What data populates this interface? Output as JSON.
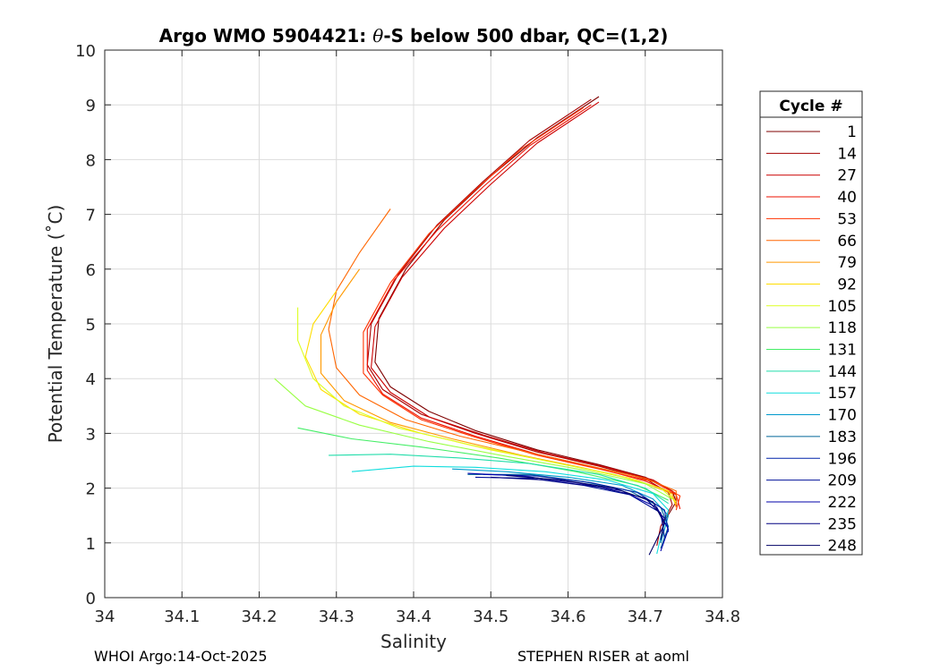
{
  "chart_data": {
    "type": "line",
    "title": "Argo WMO 5904421: θ-S below 500 dbar,  QC=(1,2)",
    "title_prefix": "Argo WMO 5904421: ",
    "title_theta": "θ",
    "title_suffix": "-S below 500 dbar,  QC=(1,2)",
    "xlabel": "Salinity",
    "ylabel": "Potential Temperature (˚C)",
    "xlim": [
      34.0,
      34.8
    ],
    "ylim": [
      0,
      10
    ],
    "xticks": [
      34.0,
      34.1,
      34.2,
      34.3,
      34.4,
      34.5,
      34.6,
      34.7,
      34.8
    ],
    "xtick_labels": [
      "34",
      "34.1",
      "34.2",
      "34.3",
      "34.4",
      "34.5",
      "34.6",
      "34.7",
      "34.8"
    ],
    "yticks": [
      0,
      1,
      2,
      3,
      4,
      5,
      6,
      7,
      8,
      9,
      10
    ],
    "ytick_labels": [
      "0",
      "1",
      "2",
      "3",
      "4",
      "5",
      "6",
      "7",
      "8",
      "9",
      "10"
    ],
    "grid": true,
    "legend_title": "Cycle #",
    "legend_position": "right",
    "series": [
      {
        "name": "1",
        "color": "#7f0000",
        "points": [
          [
            34.64,
            9.15
          ],
          [
            34.56,
            8.4
          ],
          [
            34.5,
            7.7
          ],
          [
            34.44,
            6.9
          ],
          [
            34.39,
            6.0
          ],
          [
            34.355,
            5.1
          ],
          [
            34.35,
            4.3
          ],
          [
            34.37,
            3.85
          ],
          [
            34.42,
            3.4
          ],
          [
            34.48,
            3.05
          ],
          [
            34.56,
            2.7
          ],
          [
            34.64,
            2.43
          ],
          [
            34.7,
            2.2
          ],
          [
            34.735,
            1.95
          ],
          [
            34.74,
            1.75
          ],
          [
            34.725,
            1.4
          ],
          [
            34.72,
            1.0
          ]
        ]
      },
      {
        "name": "14",
        "color": "#a40000",
        "points": [
          [
            34.63,
            9.1
          ],
          [
            34.55,
            8.35
          ],
          [
            34.49,
            7.6
          ],
          [
            34.43,
            6.8
          ],
          [
            34.38,
            5.9
          ],
          [
            34.345,
            5.0
          ],
          [
            34.34,
            4.25
          ],
          [
            34.36,
            3.8
          ],
          [
            34.41,
            3.35
          ],
          [
            34.48,
            3.0
          ],
          [
            34.56,
            2.66
          ],
          [
            34.64,
            2.4
          ],
          [
            34.7,
            2.17
          ],
          [
            34.73,
            1.92
          ],
          [
            34.735,
            1.7
          ],
          [
            34.72,
            1.3
          ],
          [
            34.715,
            0.95
          ]
        ]
      },
      {
        "name": "27",
        "color": "#cc0000",
        "points": [
          [
            34.64,
            9.05
          ],
          [
            34.56,
            8.3
          ],
          [
            34.5,
            7.55
          ],
          [
            34.44,
            6.75
          ],
          [
            34.385,
            5.85
          ],
          [
            34.35,
            4.95
          ],
          [
            34.345,
            4.2
          ],
          [
            34.37,
            3.75
          ],
          [
            34.42,
            3.3
          ],
          [
            34.49,
            2.97
          ],
          [
            34.57,
            2.64
          ],
          [
            34.65,
            2.38
          ],
          [
            34.71,
            2.15
          ],
          [
            34.74,
            1.9
          ],
          [
            34.74,
            1.65
          ]
        ]
      },
      {
        "name": "40",
        "color": "#ee1100",
        "points": [
          [
            34.63,
            9.0
          ],
          [
            34.55,
            8.25
          ],
          [
            34.49,
            7.5
          ],
          [
            34.43,
            6.7
          ],
          [
            34.375,
            5.8
          ],
          [
            34.34,
            4.9
          ],
          [
            34.34,
            4.15
          ],
          [
            34.36,
            3.72
          ],
          [
            34.41,
            3.28
          ],
          [
            34.48,
            2.95
          ],
          [
            34.56,
            2.62
          ],
          [
            34.64,
            2.36
          ],
          [
            34.7,
            2.13
          ],
          [
            34.74,
            1.88
          ],
          [
            34.745,
            1.62
          ]
        ]
      },
      {
        "name": "53",
        "color": "#ff3300",
        "points": [
          [
            34.62,
            8.95
          ],
          [
            34.54,
            8.2
          ],
          [
            34.48,
            7.45
          ],
          [
            34.42,
            6.65
          ],
          [
            34.37,
            5.75
          ],
          [
            34.335,
            4.85
          ],
          [
            34.335,
            4.1
          ],
          [
            34.36,
            3.7
          ],
          [
            34.41,
            3.25
          ],
          [
            34.48,
            2.93
          ],
          [
            34.56,
            2.6
          ],
          [
            34.64,
            2.35
          ],
          [
            34.71,
            2.12
          ],
          [
            34.745,
            1.86
          ],
          [
            34.74,
            1.6
          ]
        ]
      },
      {
        "name": "66",
        "color": "#ff6600",
        "points": [
          [
            34.37,
            7.1
          ],
          [
            34.33,
            6.3
          ],
          [
            34.3,
            5.6
          ],
          [
            34.29,
            4.9
          ],
          [
            34.3,
            4.2
          ],
          [
            34.33,
            3.7
          ],
          [
            34.39,
            3.25
          ],
          [
            34.46,
            2.95
          ],
          [
            34.55,
            2.65
          ],
          [
            34.63,
            2.4
          ],
          [
            34.7,
            2.18
          ],
          [
            34.74,
            1.95
          ],
          [
            34.74,
            1.7
          ]
        ]
      },
      {
        "name": "79",
        "color": "#ff9900",
        "points": [
          [
            34.33,
            6.0
          ],
          [
            34.3,
            5.4
          ],
          [
            34.28,
            4.8
          ],
          [
            34.28,
            4.1
          ],
          [
            34.31,
            3.6
          ],
          [
            34.37,
            3.2
          ],
          [
            34.45,
            2.9
          ],
          [
            34.54,
            2.6
          ],
          [
            34.62,
            2.37
          ],
          [
            34.69,
            2.14
          ],
          [
            34.735,
            1.9
          ],
          [
            34.74,
            1.65
          ]
        ]
      },
      {
        "name": "92",
        "color": "#ffdd00",
        "points": [
          [
            34.3,
            5.6
          ],
          [
            34.27,
            5.0
          ],
          [
            34.26,
            4.4
          ],
          [
            34.28,
            3.8
          ],
          [
            34.33,
            3.35
          ],
          [
            34.41,
            3.0
          ],
          [
            34.5,
            2.7
          ],
          [
            34.6,
            2.42
          ],
          [
            34.68,
            2.18
          ],
          [
            34.73,
            1.95
          ],
          [
            34.74,
            1.7
          ]
        ]
      },
      {
        "name": "105",
        "color": "#ddff22",
        "points": [
          [
            34.25,
            5.3
          ],
          [
            34.25,
            4.7
          ],
          [
            34.27,
            4.0
          ],
          [
            34.31,
            3.5
          ],
          [
            34.38,
            3.1
          ],
          [
            34.47,
            2.8
          ],
          [
            34.57,
            2.5
          ],
          [
            34.66,
            2.25
          ],
          [
            34.72,
            2.0
          ],
          [
            34.74,
            1.75
          ]
        ]
      },
      {
        "name": "118",
        "color": "#99ff44",
        "points": [
          [
            34.22,
            4.0
          ],
          [
            34.26,
            3.5
          ],
          [
            34.33,
            3.15
          ],
          [
            34.42,
            2.85
          ],
          [
            34.52,
            2.58
          ],
          [
            34.62,
            2.33
          ],
          [
            34.7,
            2.08
          ],
          [
            34.735,
            1.8
          ]
        ]
      },
      {
        "name": "131",
        "color": "#44ee66",
        "points": [
          [
            34.25,
            3.1
          ],
          [
            34.32,
            2.9
          ],
          [
            34.41,
            2.75
          ],
          [
            34.51,
            2.55
          ],
          [
            34.61,
            2.3
          ],
          [
            34.69,
            2.05
          ],
          [
            34.73,
            1.78
          ]
        ]
      },
      {
        "name": "144",
        "color": "#22ddaa",
        "points": [
          [
            34.29,
            2.6
          ],
          [
            34.37,
            2.62
          ],
          [
            34.46,
            2.55
          ],
          [
            34.55,
            2.45
          ],
          [
            34.64,
            2.25
          ],
          [
            34.7,
            2.0
          ],
          [
            34.73,
            1.72
          ]
        ]
      },
      {
        "name": "157",
        "color": "#11dddd",
        "points": [
          [
            34.32,
            2.3
          ],
          [
            34.4,
            2.4
          ],
          [
            34.48,
            2.38
          ],
          [
            34.57,
            2.3
          ],
          [
            34.65,
            2.15
          ],
          [
            34.71,
            1.9
          ],
          [
            34.73,
            1.6
          ],
          [
            34.72,
            1.1
          ],
          [
            34.715,
            0.8
          ]
        ]
      },
      {
        "name": "170",
        "color": "#0099cc",
        "points": [
          [
            34.45,
            2.35
          ],
          [
            34.52,
            2.3
          ],
          [
            34.6,
            2.2
          ],
          [
            34.67,
            2.05
          ],
          [
            34.71,
            1.8
          ],
          [
            34.73,
            1.5
          ],
          [
            34.72,
            1.0
          ]
        ]
      },
      {
        "name": "183",
        "color": "#006699",
        "points": [
          [
            34.47,
            2.25
          ],
          [
            34.55,
            2.25
          ],
          [
            34.62,
            2.12
          ],
          [
            34.68,
            1.95
          ],
          [
            34.72,
            1.65
          ],
          [
            34.73,
            1.3
          ],
          [
            34.72,
            0.9
          ]
        ]
      },
      {
        "name": "196",
        "color": "#0022aa",
        "points": [
          [
            34.49,
            2.25
          ],
          [
            34.56,
            2.22
          ],
          [
            34.63,
            2.1
          ],
          [
            34.69,
            1.92
          ],
          [
            34.725,
            1.6
          ],
          [
            34.73,
            1.2
          ]
        ]
      },
      {
        "name": "209",
        "color": "#001199",
        "points": [
          [
            34.48,
            2.2
          ],
          [
            34.55,
            2.18
          ],
          [
            34.62,
            2.05
          ],
          [
            34.68,
            1.88
          ],
          [
            34.72,
            1.55
          ],
          [
            34.725,
            1.1
          ]
        ]
      },
      {
        "name": "222",
        "color": "#0000aa",
        "points": [
          [
            34.47,
            2.27
          ],
          [
            34.54,
            2.22
          ],
          [
            34.61,
            2.1
          ],
          [
            34.67,
            1.95
          ],
          [
            34.715,
            1.65
          ],
          [
            34.73,
            1.25
          ],
          [
            34.72,
            0.85
          ]
        ]
      },
      {
        "name": "235",
        "color": "#000080",
        "points": [
          [
            34.5,
            2.2
          ],
          [
            34.57,
            2.15
          ],
          [
            34.64,
            2.02
          ],
          [
            34.7,
            1.82
          ],
          [
            34.725,
            1.45
          ],
          [
            34.72,
            1.05
          ]
        ]
      },
      {
        "name": "248",
        "color": "#000066",
        "points": [
          [
            34.52,
            2.23
          ],
          [
            34.59,
            2.15
          ],
          [
            34.66,
            2.0
          ],
          [
            34.71,
            1.75
          ],
          [
            34.725,
            1.35
          ],
          [
            34.705,
            0.78
          ]
        ]
      }
    ]
  },
  "footer": {
    "left": "WHOI Argo:14-Oct-2025",
    "right": "STEPHEN RISER at aoml"
  }
}
